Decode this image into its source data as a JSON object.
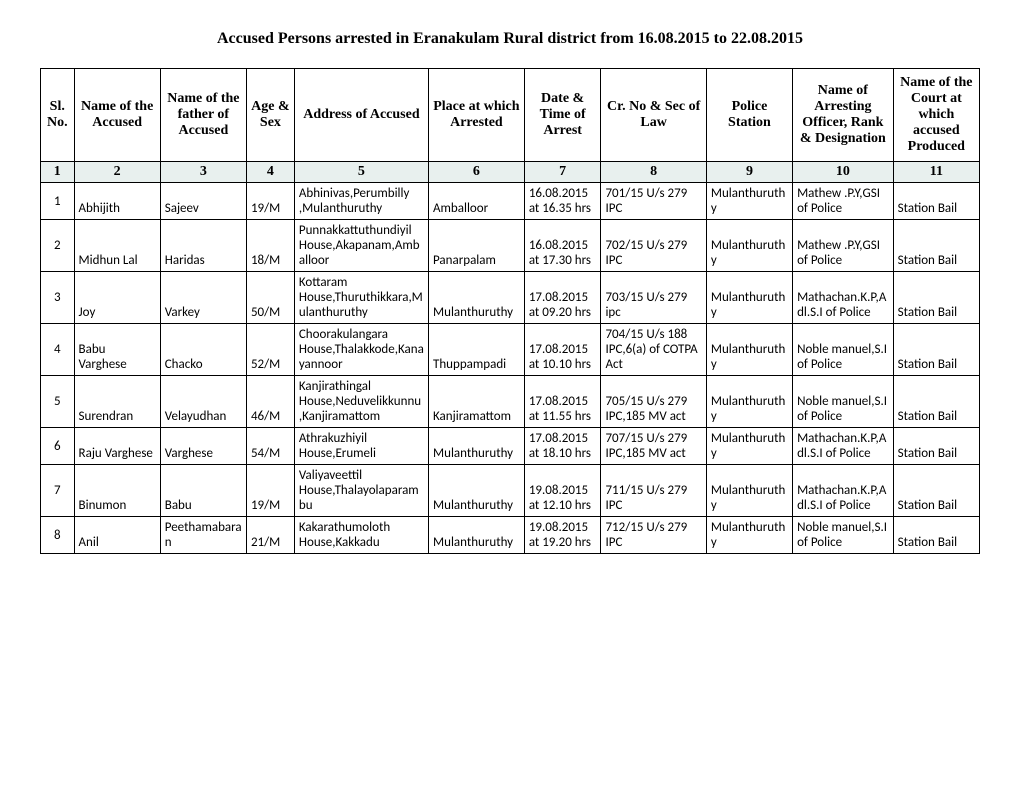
{
  "title": "Accused Persons arrested in   Eranakulam Rural  district from  16.08.2015 to 22.08.2015",
  "headers": {
    "sl": "Sl. No.",
    "name": "Name of the Accused",
    "father": "Name of the father of Accused",
    "age": "Age & Sex",
    "addr": "Address of Accused",
    "place": "Place at which Arrested",
    "date": "Date & Time of Arrest",
    "cr": "Cr. No & Sec of Law",
    "station": "Police Station",
    "officer": "Name of Arresting Officer, Rank & Designation",
    "court": "Name of the Court at which accused Produced"
  },
  "numrow": [
    "1",
    "2",
    "3",
    "4",
    "5",
    "6",
    "7",
    "8",
    "9",
    "10",
    "11"
  ],
  "rows": [
    {
      "sl": "1",
      "name": "Abhijith",
      "father": "Sajeev",
      "age": "19/M",
      "addr": "Abhinivas,Perumbilly ,Mulanthuruthy",
      "place": "Amballoor",
      "date": "16.08.2015 at 16.35 hrs",
      "cr": "701/15 U/s 279 IPC",
      "station": "Mulanthuruthy",
      "officer": "Mathew .P.Y,GSI of Police",
      "court": "Station Bail"
    },
    {
      "sl": "2",
      "name": "Midhun Lal",
      "father": "Haridas",
      "age": "18/M",
      "addr": "Punnakkattuthundiyil House,Akapanam,Amballoor",
      "place": "Panarpalam",
      "date": "16.08.2015 at 17.30 hrs",
      "cr": "702/15 U/s 279 IPC",
      "station": "Mulanthuruthy",
      "officer": "Mathew .P.Y,GSI of Police",
      "court": "Station Bail"
    },
    {
      "sl": "3",
      "name": "Joy",
      "father": "Varkey",
      "age": "50/M",
      "addr": "Kottaram House,Thuruthikkara,Mulanthuruthy",
      "place": "Mulanthuruthy",
      "date": "17.08.2015 at 09.20 hrs",
      "cr": "703/15 U/s 279 ipc",
      "station": "Mulanthuruthy",
      "officer": "Mathachan.K.P,Adl.S.I of Police",
      "court": "Station Bail"
    },
    {
      "sl": "4",
      "name": "Babu Varghese",
      "father": "Chacko",
      "age": "52/M",
      "addr": "Choorakulangara House,Thalakkode,Kanayannoor",
      "place": "Thuppampadi",
      "date": "17.08.2015 at 10.10 hrs",
      "cr": "704/15 U/s 188 IPC,6(a) of COTPA Act",
      "station": "Mulanthuruthy",
      "officer": "Noble manuel,S.I of Police",
      "court": "Station Bail"
    },
    {
      "sl": "5",
      "name": "Surendran",
      "father": "Velayudhan",
      "age": "46/M",
      "addr": "Kanjirathingal House,Neduvelikkunnu,Kanjiramattom",
      "place": "Kanjiramattom",
      "date": "17.08.2015 at 11.55 hrs",
      "cr": "705/15 U/s 279 IPC,185 MV act",
      "station": "Mulanthuruthy",
      "officer": "Noble manuel,S.I of Police",
      "court": "Station Bail"
    },
    {
      "sl": "6",
      "name": "Raju Varghese",
      "father": "Varghese",
      "age": "54/M",
      "addr": "Athrakuzhiyil House,Erumeli",
      "place": "Mulanthuruthy",
      "date": "17.08.2015 at 18.10 hrs",
      "cr": "707/15 U/s 279 IPC,185 MV act",
      "station": "Mulanthuruthy",
      "officer": "Mathachan.K.P,Adl.S.I of Police",
      "court": "Station Bail"
    },
    {
      "sl": "7",
      "name": "Binumon",
      "father": "Babu",
      "age": "19/M",
      "addr": "Valiyaveettil House,Thalayolaparambu",
      "place": "Mulanthuruthy",
      "date": "19.08.2015 at 12.10 hrs",
      "cr": "711/15 U/s 279 IPC",
      "station": "Mulanthuruthy",
      "officer": "Mathachan.K.P,Adl.S.I of Police",
      "court": "Station Bail"
    },
    {
      "sl": "8",
      "name": "Anil",
      "father": "Peethamabaran",
      "age": "21/M",
      "addr": "Kakarathumoloth House,Kakkadu",
      "place": "Mulanthuruthy",
      "date": "19.08.2015 at 19.20 hrs",
      "cr": "712/15 U/s 279 IPC",
      "station": "Mulanthuruthy",
      "officer": "Noble manuel,S.I of Police",
      "court": "Station Bail"
    }
  ]
}
